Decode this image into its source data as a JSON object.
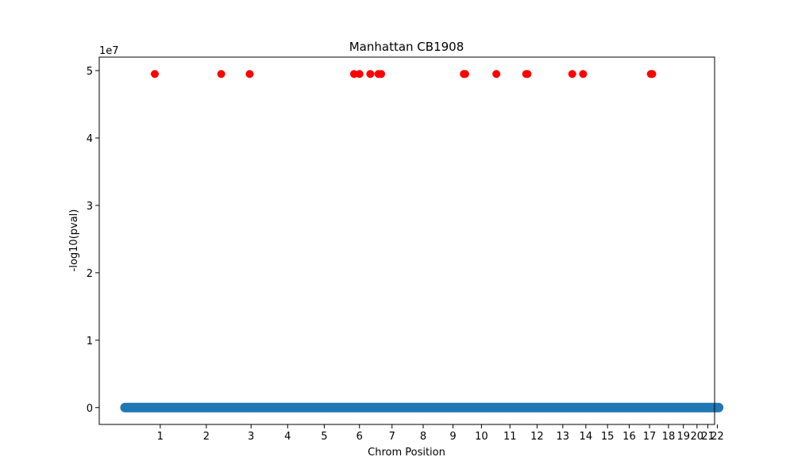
{
  "chart_data": {
    "type": "scatter",
    "title": "Manhattan CB1908",
    "xlabel": "Chrom Position",
    "ylabel": "-log10(pval)",
    "y_offset_label": "1e7",
    "xlim": [
      -0.35,
      22.35
    ],
    "ylim": [
      -2500000,
      52000000
    ],
    "x_ticks": [
      {
        "label": "1",
        "value": 1.9
      },
      {
        "label": "2",
        "value": 3.6
      },
      {
        "label": "3",
        "value": 5.25
      },
      {
        "label": "4",
        "value": 6.6
      },
      {
        "label": "5",
        "value": 7.95
      },
      {
        "label": "6",
        "value": 9.25
      },
      {
        "label": "7",
        "value": 10.45
      },
      {
        "label": "8",
        "value": 11.6
      },
      {
        "label": "9",
        "value": 12.7
      },
      {
        "label": "10",
        "value": 13.75
      },
      {
        "label": "11",
        "value": 14.8
      },
      {
        "label": "12",
        "value": 15.8
      },
      {
        "label": "13",
        "value": 16.75
      },
      {
        "label": "14",
        "value": 17.6
      },
      {
        "label": "15",
        "value": 18.4
      },
      {
        "label": "16",
        "value": 19.2
      },
      {
        "label": "17",
        "value": 19.95
      },
      {
        "label": "18",
        "value": 20.65
      },
      {
        "label": "19",
        "value": 21.2
      },
      {
        "label": "20",
        "value": 21.7
      },
      {
        "label": "21",
        "value": 22.1
      },
      {
        "label": "22",
        "value": 22.45
      }
    ],
    "y_ticks": [
      {
        "label": "0",
        "value": 0
      },
      {
        "label": "1",
        "value": 10000000
      },
      {
        "label": "2",
        "value": 20000000
      },
      {
        "label": "3",
        "value": 30000000
      },
      {
        "label": "4",
        "value": 40000000
      },
      {
        "label": "5",
        "value": 50000000
      }
    ],
    "baseline": {
      "color": "#1f77b4",
      "x_start": 0.6,
      "x_end": 22.5,
      "y": 0
    },
    "series": [
      {
        "color": "#ff0000",
        "points": [
          {
            "x": 1.7,
            "y": 49500000
          },
          {
            "x": 4.15,
            "y": 49500000
          },
          {
            "x": 5.2,
            "y": 49500000
          },
          {
            "x": 9.05,
            "y": 49500000
          },
          {
            "x": 9.25,
            "y": 49500000
          },
          {
            "x": 9.65,
            "y": 49500000
          },
          {
            "x": 9.95,
            "y": 49500000
          },
          {
            "x": 10.05,
            "y": 49500000
          },
          {
            "x": 13.1,
            "y": 49500000
          },
          {
            "x": 13.15,
            "y": 49500000
          },
          {
            "x": 14.3,
            "y": 49500000
          },
          {
            "x": 15.4,
            "y": 49500000
          },
          {
            "x": 15.45,
            "y": 49500000
          },
          {
            "x": 17.1,
            "y": 49500000
          },
          {
            "x": 17.5,
            "y": 49500000
          },
          {
            "x": 20.0,
            "y": 49500000
          },
          {
            "x": 20.05,
            "y": 49500000
          }
        ]
      }
    ]
  }
}
